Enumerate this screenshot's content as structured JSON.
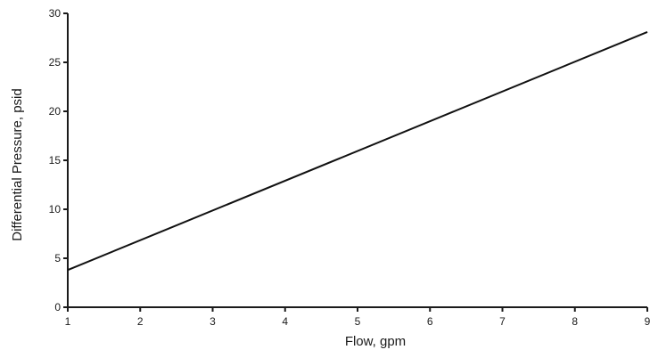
{
  "chart_data": {
    "type": "line",
    "xlabel": "Flow, gpm",
    "ylabel": "Differential Pressure, psid",
    "xlim": [
      1,
      9
    ],
    "ylim": [
      0,
      30
    ],
    "x_ticks": [
      1,
      2,
      3,
      4,
      5,
      6,
      7,
      8,
      9
    ],
    "y_ticks": [
      0,
      5,
      10,
      15,
      20,
      25,
      30
    ],
    "grid": false,
    "series": [
      {
        "x": [
          1,
          9
        ],
        "y": [
          3.8,
          28.1
        ]
      }
    ]
  }
}
